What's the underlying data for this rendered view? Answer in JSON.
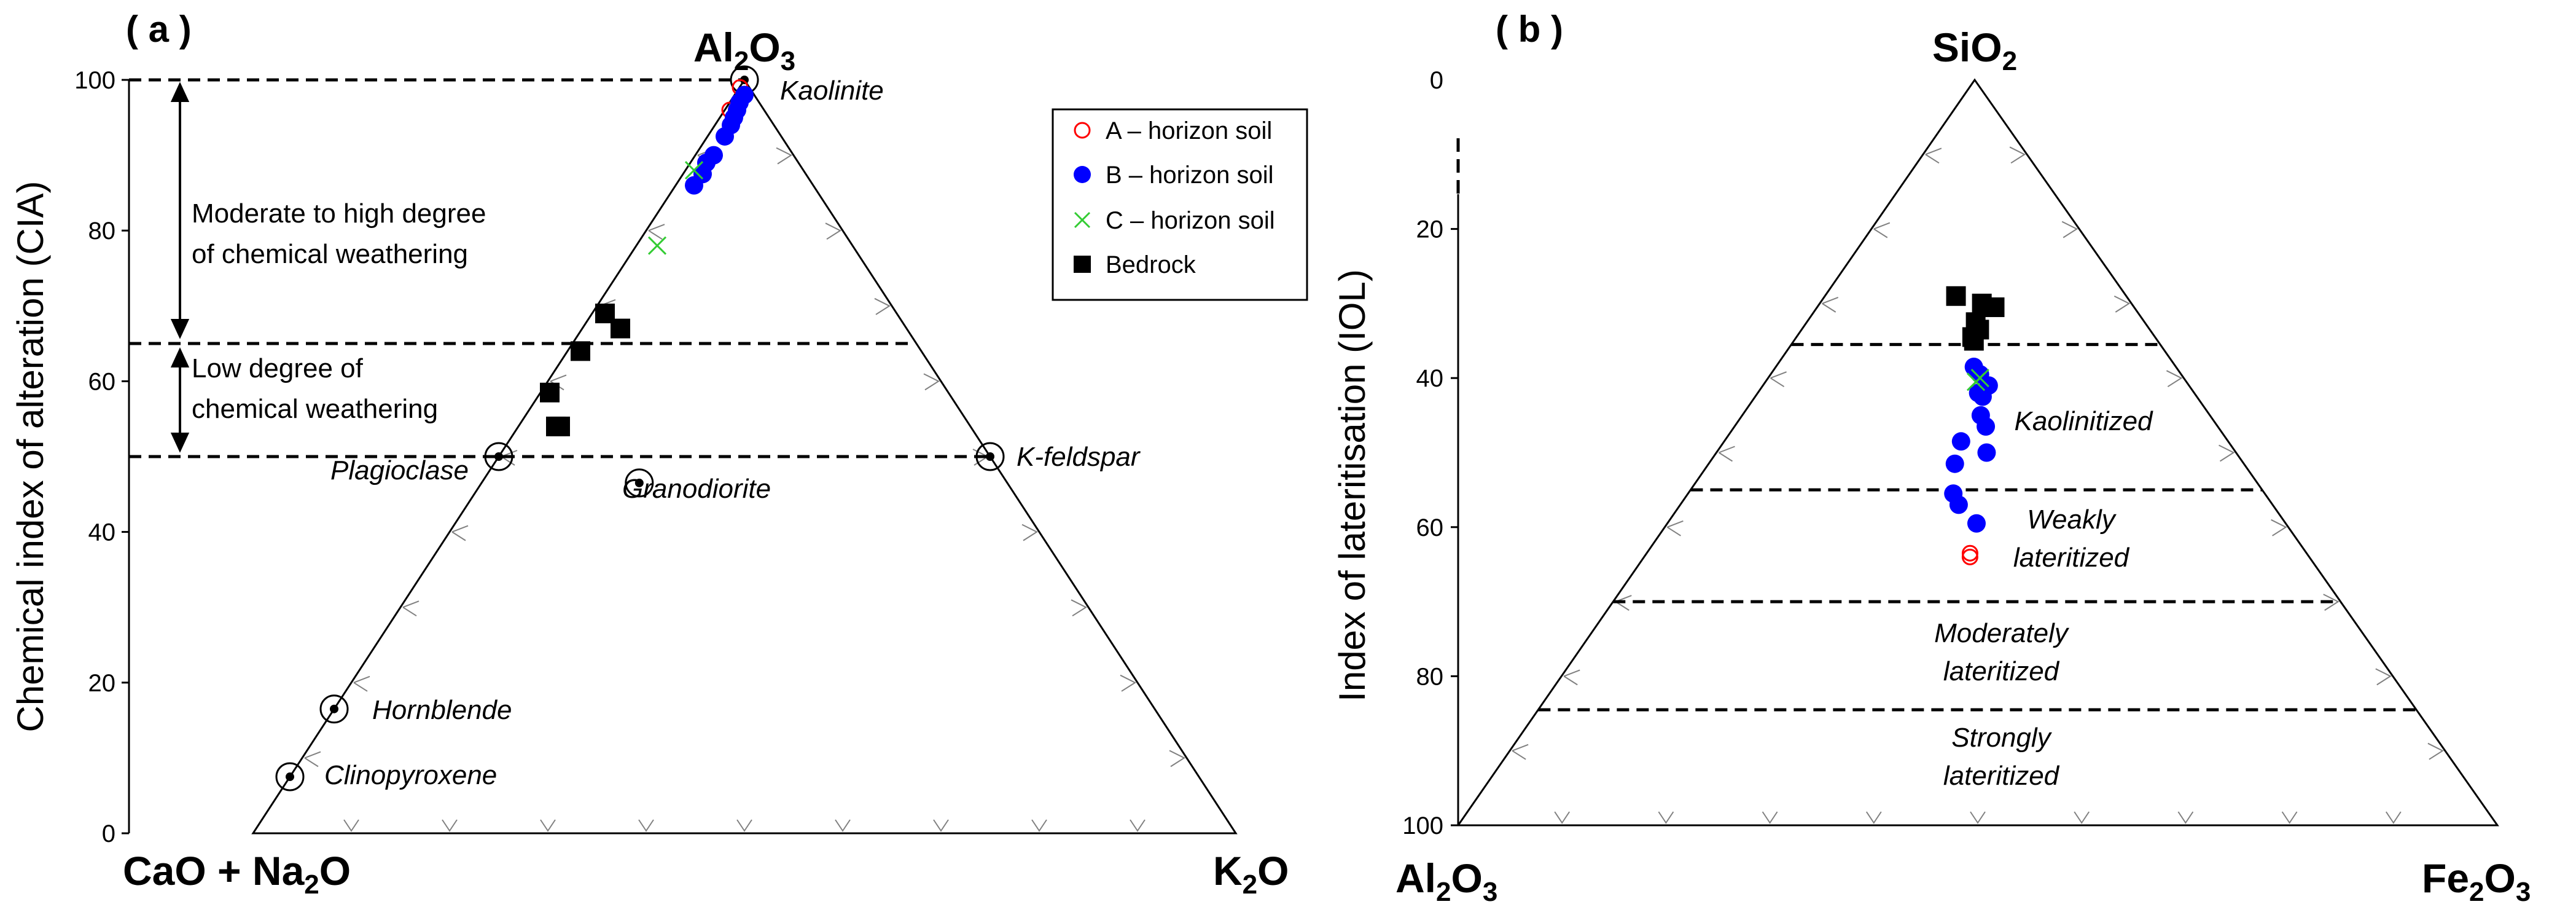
{
  "chart_data": [
    {
      "panel": "( a )",
      "type": "scatter",
      "diagram": "ternary",
      "corners": {
        "top": {
          "text": "Al",
          "sub": "2",
          "text2": "O",
          "sub2": "3"
        },
        "left": {
          "text": "CaO + Na",
          "sub": "2",
          "text2": "O",
          "sub2": ""
        },
        "right": {
          "text": "K",
          "sub": "2",
          "text2": "O",
          "sub2": ""
        }
      },
      "ylabel": "Chemical index of alteration (CIA)",
      "ylim": [
        0,
        100
      ],
      "yticks": [
        "0",
        "20",
        "40",
        "60",
        "80",
        "100"
      ],
      "reference_lines": [
        100,
        65,
        50
      ],
      "annotations": [
        "Moderate to high degree",
        "of chemical weathering",
        "Low degree of",
        "chemical weathering"
      ],
      "minerals": [
        {
          "label": "Kaolinite",
          "ref": 100
        },
        {
          "label": "Plagioclase",
          "ref": 50
        },
        {
          "label": "K-feldspar",
          "ref": 50
        },
        {
          "label": "Granodiorite",
          "ref": 46.5
        },
        {
          "label": "Hornblende",
          "ref": 16.5
        },
        {
          "label": "Clinopyroxene",
          "ref": 7.5
        }
      ],
      "mineral_coords": [
        [
          0,
          100
        ],
        [
          100,
          0
        ],
        [
          0,
          50
        ],
        [
          50,
          0
        ],
        [
          50,
          50
        ],
        [
          0,
          0
        ],
        [
          39,
          46.5
        ],
        [
          14.5,
          0
        ],
        [
          16.5,
          83.5
        ],
        [
          0,
          0
        ],
        [
          7.5,
          92.5
        ],
        [
          0,
          0
        ]
      ],
      "series": [
        {
          "name": "A – horizon soil",
          "points": [
            [
              96,
              4.5,
              95.5
            ],
            [
              99,
              0.8,
              99.2
            ]
          ]
        },
        {
          "name": "B – horizon soil",
          "points": [
            [
              98,
              1,
              99
            ],
            [
              97,
              2,
              98
            ],
            [
              96,
              2,
              97.5
            ],
            [
              95,
              3,
              97
            ],
            [
              94,
              3.5,
              96
            ],
            [
              92.5,
              4,
              95
            ],
            [
              90,
              6,
              94
            ],
            [
              89,
              6.5,
              93.5
            ],
            [
              87.5,
              7.5,
              92
            ],
            [
              86,
              8.5,
              91
            ]
          ]
        },
        {
          "name": "C – horizon soil",
          "points": [
            [
              88,
              7.5,
              92
            ],
            [
              78,
              16,
              84
            ]
          ]
        },
        {
          "name": "Bedrock",
          "points": [
            [
              69,
              20,
              80
            ],
            [
              67,
              23,
              77
            ],
            [
              64,
              25,
              75
            ],
            [
              58.5,
              29,
              71
            ],
            [
              54,
              30,
              70
            ],
            [
              54,
              31,
              69
            ]
          ]
        }
      ]
    },
    {
      "panel": "( b )",
      "type": "scatter",
      "diagram": "ternary",
      "corners": {
        "top": {
          "text": "SiO",
          "sub": "2",
          "text2": "",
          "sub2": ""
        },
        "left": {
          "text": "Al",
          "sub": "2",
          "text2": "O",
          "sub2": "3"
        },
        "right": {
          "text": "Fe",
          "sub": "2",
          "text2": "O",
          "sub2": "3"
        }
      },
      "ylabel": "Index of lateritisation (IOL)",
      "ylim": [
        0,
        100
      ],
      "yticks": [
        "0",
        "20",
        "40",
        "60",
        "80",
        "100"
      ],
      "zones": [
        {
          "label_lines": [
            "Kaolinitized"
          ],
          "from": 35.5,
          "to": 55
        },
        {
          "label_lines": [
            "Weakly",
            "lateritized"
          ],
          "from": 55,
          "to": 70
        },
        {
          "label_lines": [
            "Moderately",
            "lateritized"
          ],
          "from": 70,
          "to": 84.5
        },
        {
          "label_lines": [
            "Strongly",
            "lateritized"
          ],
          "from": 84.5,
          "to": 100
        }
      ],
      "series": [
        {
          "name": "A – horizon soil",
          "points": [
            [
              63.5,
              0.49
            ],
            [
              64,
              0.49
            ]
          ]
        },
        {
          "name": "B – horizon soil",
          "points": [
            [
              38.5,
              0.495
            ],
            [
              39.5,
              0.51
            ],
            [
              41,
              0.53
            ],
            [
              42,
              0.505
            ],
            [
              42.5,
              0.515
            ],
            [
              45,
              0.51
            ],
            [
              46.5,
              0.52
            ],
            [
              48.5,
              0.47
            ],
            [
              50,
              0.52
            ],
            [
              51.5,
              0.46
            ],
            [
              55.5,
              0.46
            ],
            [
              57,
              0.47
            ],
            [
              59.5,
              0.5
            ]
          ]
        },
        {
          "name": "C – horizon soil",
          "points": [
            [
              40.5,
              0.5
            ],
            [
              40,
              0.51
            ]
          ]
        },
        {
          "name": "Bedrock",
          "points": [
            [
              29,
              0.435
            ],
            [
              30,
              0.52
            ],
            [
              30.5,
              0.56
            ],
            [
              32.5,
              0.5
            ],
            [
              33.5,
              0.51
            ],
            [
              34.5,
              0.49
            ],
            [
              35,
              0.495
            ]
          ]
        }
      ]
    }
  ],
  "legend": [
    {
      "label": "A – horizon soil",
      "marker": "open-circle",
      "color": "#ff0000"
    },
    {
      "label": "B – horizon soil",
      "marker": "filled-circle",
      "color": "#0000ff"
    },
    {
      "label": "C – horizon soil",
      "marker": "cross",
      "color": "#33cc33"
    },
    {
      "label": "Bedrock",
      "marker": "filled-square",
      "color": "#000000"
    }
  ],
  "colors": {
    "A": "#ff0000",
    "B": "#0000ff",
    "C": "#33cc33",
    "Bedrock": "#000000",
    "ticks": "#808080"
  }
}
